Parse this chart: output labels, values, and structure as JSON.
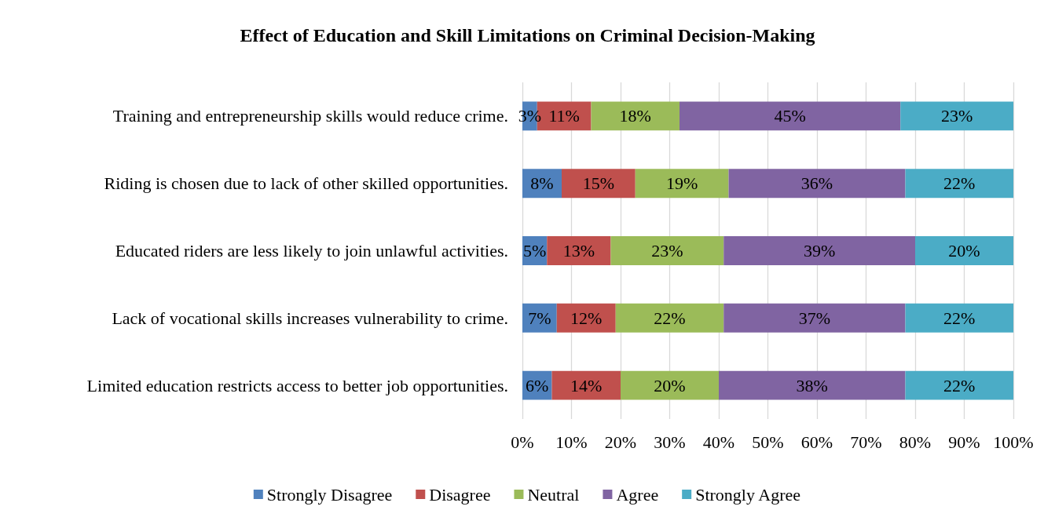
{
  "chart_data": {
    "type": "bar",
    "orientation": "horizontal",
    "stacked": true,
    "title": "Effect of Education and Skill Limitations on Criminal Decision-Making",
    "categories": [
      "Training and entrepreneurship skills would reduce crime.",
      "Riding is chosen due to lack of other skilled opportunities.",
      "Educated riders are less likely to join unlawful activities.",
      "Lack of vocational skills increases vulnerability to crime.",
      "Limited education restricts access to better job opportunities."
    ],
    "series": [
      {
        "name": "Strongly Disagree",
        "color": "#4f81bd",
        "values": [
          3,
          8,
          5,
          7,
          6
        ],
        "value_labels": [
          "3%",
          "8%",
          "5%",
          "7%",
          "6%"
        ]
      },
      {
        "name": "Disagree",
        "color": "#c0504d",
        "values": [
          11,
          15,
          13,
          12,
          14
        ],
        "value_labels": [
          "11%",
          "15%",
          "13%",
          "12%",
          "14%"
        ]
      },
      {
        "name": "Neutral",
        "color": "#9bbb59",
        "values": [
          18,
          19,
          23,
          22,
          20
        ],
        "value_labels": [
          "18%",
          "19%",
          "23%",
          "22%",
          "20%"
        ]
      },
      {
        "name": "Agree",
        "color": "#8064a2",
        "values": [
          45,
          36,
          39,
          37,
          38
        ],
        "value_labels": [
          "45%",
          "36%",
          "39%",
          "37%",
          "38%"
        ]
      },
      {
        "name": "Strongly Agree",
        "color": "#4bacc6",
        "values": [
          23,
          22,
          20,
          22,
          22
        ],
        "value_labels": [
          "23%",
          "22%",
          "20%",
          "22%",
          "22%"
        ]
      }
    ],
    "xlim": [
      0,
      100
    ],
    "xticks": [
      {
        "value": 0,
        "label": "0%"
      },
      {
        "value": 10,
        "label": "10%"
      },
      {
        "value": 20,
        "label": "20%"
      },
      {
        "value": 30,
        "label": "30%"
      },
      {
        "value": 40,
        "label": "40%"
      },
      {
        "value": 50,
        "label": "50%"
      },
      {
        "value": 60,
        "label": "60%"
      },
      {
        "value": 70,
        "label": "70%"
      },
      {
        "value": 80,
        "label": "80%"
      },
      {
        "value": 90,
        "label": "90%"
      },
      {
        "value": 100,
        "label": "100%"
      }
    ],
    "grid": "x",
    "legend": "bottom"
  }
}
